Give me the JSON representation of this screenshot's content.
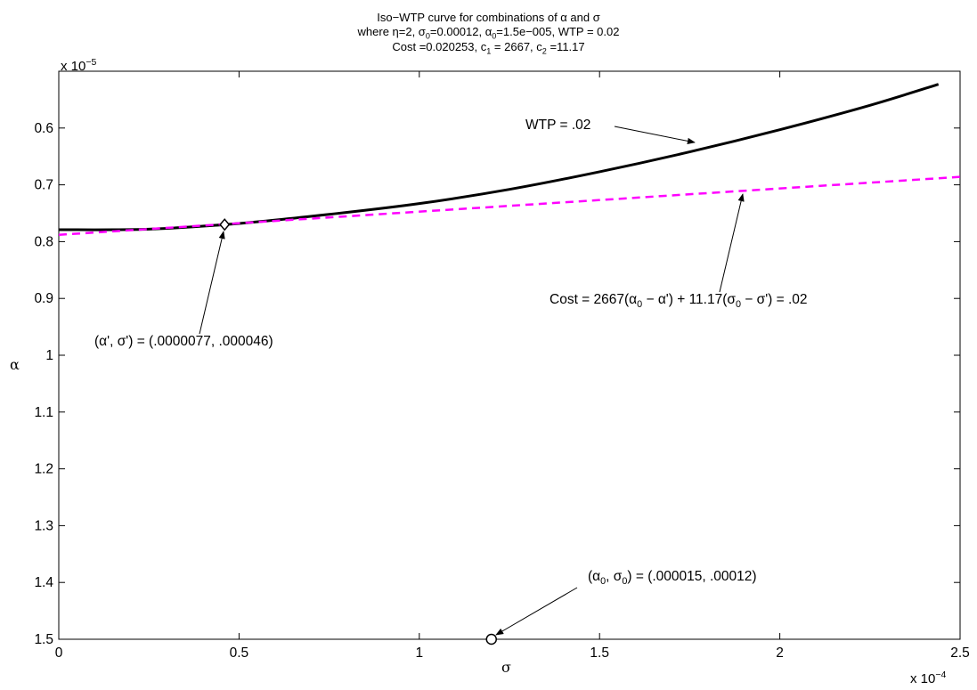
{
  "chart_data": {
    "type": "line",
    "title": {
      "line1": "Iso−WTP curve for combinations of α and σ",
      "line2": {
        "a": "where η=2,  σ",
        "a_sub": "0",
        "b": "=0.00012,  α",
        "b_sub": "0",
        "c": "=1.5e−005,  WTP = 0.02"
      },
      "line3": {
        "a": "Cost =0.020253, c",
        "a_sub": "1",
        "b": " = 2667, c",
        "b_sub": "2",
        "c": " =11.17"
      }
    },
    "xlabel": "σ",
    "ylabel": "α",
    "x_exponent": {
      "base": "x 10",
      "power": "−4"
    },
    "y_exponent": {
      "base": "x 10",
      "power": "−5"
    },
    "x_scale": 0.0001,
    "y_scale": 1e-05,
    "xlim": [
      0,
      2.5
    ],
    "ylim": [
      0.5,
      1.5
    ],
    "y_reversed": true,
    "x_ticks": [
      0,
      0.5,
      1,
      1.5,
      2,
      2.5
    ],
    "x_tick_labels": [
      "0",
      "0.5",
      "1",
      "1.5",
      "2",
      "2.5"
    ],
    "y_ticks": [
      0.6,
      0.7,
      0.8,
      0.9,
      1.0,
      1.1,
      1.2,
      1.3,
      1.4,
      1.5
    ],
    "y_tick_labels": [
      "0.6",
      "0.7",
      "0.8",
      "0.9",
      "1",
      "1.1",
      "1.2",
      "1.3",
      "1.4",
      "1.5"
    ],
    "grid": false,
    "series": [
      {
        "name": "WTP = .02",
        "style": "solid",
        "color": "#000000",
        "x": [
          0,
          0.25,
          0.5,
          0.75,
          1.0,
          1.25,
          1.5,
          1.75,
          2.0,
          2.25,
          2.44
        ],
        "y": [
          0.779,
          0.778,
          0.768,
          0.752,
          0.733,
          0.708,
          0.677,
          0.642,
          0.603,
          0.56,
          0.523
        ]
      },
      {
        "name": "Cost = 2667(α0 − α') + 11.17(σ0 − σ') = .02",
        "style": "dashed",
        "color": "#ff00ff",
        "x": [
          0,
          2.5
        ],
        "y": [
          0.788,
          0.686
        ]
      }
    ],
    "points": [
      {
        "label": "(α', σ') = (.0000077, .000046)",
        "x": 0.46,
        "y": 0.77,
        "marker": "diamond"
      },
      {
        "label": "(α0, σ0) = (.000015, .00012)",
        "x": 1.2,
        "y": 1.5,
        "marker": "circle"
      }
    ],
    "annotations": {
      "wtp": "WTP = .02",
      "cost": {
        "a": "Cost = 2667(α",
        "a_sub": "0",
        "b": " − α') + 11.17(σ",
        "b_sub": "0",
        "c": " − σ') = .02"
      },
      "tangent": "(α', σ') = (.0000077, .000046)",
      "origin": {
        "a": "(α",
        "a_sub": "0",
        "b": ", σ",
        "b_sub": "0",
        "c": ") = (.000015, .00012)"
      }
    }
  }
}
